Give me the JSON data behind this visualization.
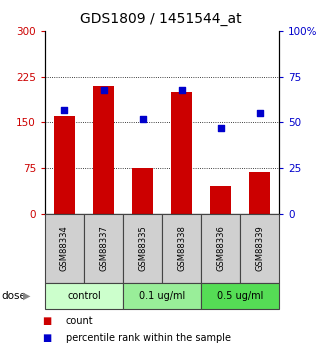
{
  "title": "GDS1809 / 1451544_at",
  "samples": [
    "GSM88334",
    "GSM88337",
    "GSM88335",
    "GSM88338",
    "GSM88336",
    "GSM88339"
  ],
  "counts": [
    160,
    210,
    75,
    200,
    45,
    68
  ],
  "percentiles": [
    57,
    68,
    52,
    68,
    47,
    55
  ],
  "ylim_left": [
    0,
    300
  ],
  "ylim_right": [
    0,
    100
  ],
  "yticks_left": [
    0,
    75,
    150,
    225,
    300
  ],
  "ytick_labels_left": [
    "0",
    "75",
    "150",
    "225",
    "300"
  ],
  "yticks_right": [
    0,
    25,
    50,
    75,
    100
  ],
  "ytick_labels_right": [
    "0",
    "25",
    "50",
    "75",
    "100%"
  ],
  "bar_color": "#cc0000",
  "dot_color": "#0000cc",
  "groups": [
    {
      "label": "control",
      "indices": [
        0,
        1
      ],
      "color": "#ccffcc"
    },
    {
      "label": "0.1 ug/ml",
      "indices": [
        2,
        3
      ],
      "color": "#99ee99"
    },
    {
      "label": "0.5 ug/ml",
      "indices": [
        4,
        5
      ],
      "color": "#55dd55"
    }
  ],
  "dose_label": "dose",
  "legend_count": "count",
  "legend_percentile": "percentile rank within the sample",
  "title_fontsize": 10,
  "tick_fontsize": 7.5,
  "sample_fontsize": 6,
  "dose_fontsize": 7,
  "legend_fontsize": 7
}
